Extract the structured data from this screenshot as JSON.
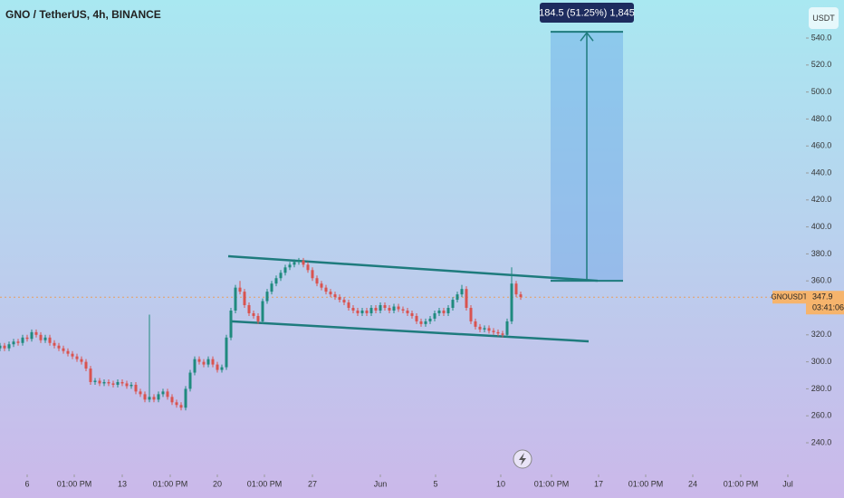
{
  "chart_data": {
    "type": "candlestick",
    "title": "GNO / TetherUS, 4h, BINANCE",
    "currency": "USDT",
    "symbol": "GNOUSDT",
    "last_price": 347.9,
    "countdown": "03:41:06",
    "up_color": "#1f8a7e",
    "down_color": "#d9534f",
    "line_color": "#1e7b7d",
    "open": [
      310,
      312,
      310,
      313,
      315,
      314,
      318,
      317,
      322,
      320,
      316,
      318,
      314,
      312,
      310,
      308,
      306,
      304,
      302,
      300,
      295,
      285,
      286,
      284,
      285,
      284,
      283,
      285,
      284,
      282,
      283,
      278,
      276,
      272,
      274,
      272,
      276,
      278,
      274,
      270,
      268,
      266,
      280,
      292,
      302,
      300,
      298,
      302,
      298,
      294,
      296,
      318,
      338,
      355,
      352,
      342,
      336,
      334,
      330,
      345,
      352,
      358,
      362,
      366,
      370,
      372,
      374,
      375,
      372,
      368,
      362,
      358,
      355,
      352,
      350,
      348,
      346,
      344,
      340,
      338,
      336,
      338,
      336,
      340,
      338,
      342,
      340,
      338,
      341,
      339,
      338,
      336,
      334,
      330,
      328,
      330,
      332,
      336,
      338,
      336,
      340,
      346,
      350,
      354,
      340,
      330,
      326,
      324,
      325,
      323,
      322,
      321,
      320,
      330,
      358,
      350
    ],
    "high": [
      314,
      314,
      315,
      317,
      317,
      320,
      320,
      324,
      324,
      322,
      320,
      320,
      316,
      314,
      312,
      310,
      308,
      306,
      304,
      302,
      297,
      288,
      288,
      287,
      287,
      286,
      287,
      287,
      286,
      285,
      285,
      280,
      278,
      335,
      276,
      278,
      280,
      280,
      276,
      272,
      270,
      282,
      294,
      304,
      304,
      302,
      304,
      304,
      300,
      298,
      320,
      340,
      357,
      360,
      354,
      344,
      338,
      336,
      347,
      354,
      360,
      364,
      368,
      372,
      374,
      376,
      377,
      377,
      374,
      370,
      364,
      360,
      357,
      354,
      352,
      350,
      348,
      346,
      342,
      340,
      340,
      340,
      342,
      342,
      344,
      344,
      342,
      343,
      343,
      341,
      340,
      338,
      336,
      332,
      332,
      334,
      338,
      340,
      340,
      342,
      348,
      352,
      357,
      356,
      342,
      332,
      328,
      327,
      327,
      325,
      324,
      323,
      332,
      370,
      360,
      352
    ],
    "low": [
      308,
      308,
      308,
      311,
      312,
      312,
      315,
      315,
      318,
      314,
      314,
      312,
      310,
      308,
      306,
      304,
      302,
      300,
      298,
      293,
      283,
      283,
      282,
      282,
      282,
      281,
      281,
      282,
      280,
      280,
      276,
      274,
      270,
      270,
      270,
      270,
      274,
      272,
      268,
      266,
      264,
      264,
      278,
      290,
      298,
      296,
      296,
      296,
      292,
      292,
      294,
      316,
      336,
      350,
      340,
      334,
      332,
      328,
      328,
      343,
      350,
      356,
      360,
      364,
      368,
      370,
      372,
      370,
      366,
      360,
      356,
      353,
      350,
      348,
      346,
      344,
      342,
      338,
      336,
      334,
      334,
      334,
      334,
      336,
      336,
      338,
      336,
      336,
      337,
      336,
      334,
      332,
      328,
      326,
      326,
      328,
      330,
      334,
      334,
      334,
      338,
      344,
      348,
      338,
      328,
      324,
      322,
      322,
      321,
      320,
      319,
      318,
      318,
      328,
      348,
      346
    ],
    "close": [
      312,
      310,
      313,
      315,
      314,
      318,
      317,
      322,
      320,
      316,
      318,
      314,
      312,
      310,
      308,
      306,
      304,
      302,
      300,
      295,
      285,
      286,
      284,
      285,
      284,
      283,
      285,
      284,
      282,
      283,
      278,
      276,
      272,
      274,
      272,
      276,
      278,
      274,
      270,
      268,
      266,
      280,
      292,
      302,
      300,
      298,
      302,
      298,
      294,
      296,
      318,
      338,
      355,
      352,
      342,
      336,
      334,
      330,
      345,
      352,
      358,
      362,
      366,
      370,
      372,
      374,
      375,
      372,
      368,
      362,
      358,
      355,
      352,
      350,
      348,
      346,
      344,
      340,
      338,
      336,
      338,
      336,
      340,
      338,
      342,
      340,
      338,
      341,
      339,
      338,
      336,
      334,
      330,
      328,
      330,
      332,
      336,
      338,
      336,
      340,
      346,
      350,
      354,
      340,
      330,
      326,
      324,
      325,
      323,
      322,
      321,
      320,
      330,
      358,
      350,
      348
    ],
    "xlim": [
      0,
      178
    ],
    "xticks": [
      6,
      {
        "value": 16.4,
        "label": "01:00 PM"
      },
      {
        "value": 27,
        "label": "13"
      },
      {
        "value": 37.6,
        "label": "01:00 PM"
      },
      {
        "value": 48,
        "label": "20"
      },
      {
        "value": 58.4,
        "label": "01:00 PM"
      },
      {
        "value": 69,
        "label": "27"
      },
      {
        "value": 84,
        "label": "Jun"
      },
      {
        "value": 96.2,
        "label": "5"
      },
      {
        "value": 110.6,
        "label": "10"
      },
      {
        "value": 121.8,
        "label": "01:00 PM"
      },
      {
        "value": 132.2,
        "label": "17"
      },
      {
        "value": 142.6,
        "label": "01:00 PM"
      },
      {
        "value": 153,
        "label": "24"
      },
      {
        "value": 163.6,
        "label": "01:00 PM"
      },
      {
        "value": 174,
        "label": "Jul"
      }
    ],
    "ylim": [
      219.2,
      568.2
    ],
    "yticks": [
      {
        "value": 240,
        "label": "240.0"
      },
      {
        "value": 260,
        "label": "260.0"
      },
      {
        "value": 280,
        "label": "280.0"
      },
      {
        "value": 300,
        "label": "300.0"
      },
      {
        "value": 320,
        "label": "320.0"
      },
      {
        "value": 340,
        "label": "340.0"
      },
      {
        "value": 360,
        "label": "360.0"
      },
      {
        "value": 380,
        "label": "380.0"
      },
      {
        "value": 400,
        "label": "400.0"
      },
      {
        "value": 420,
        "label": "420.0"
      },
      {
        "value": 440,
        "label": "440.0"
      },
      {
        "value": 460,
        "label": "460.0"
      },
      {
        "value": 480,
        "label": "480.0"
      },
      {
        "value": 500,
        "label": "500.0"
      },
      {
        "value": 520,
        "label": "520.0"
      },
      {
        "value": 540,
        "label": "540.0"
      }
    ],
    "trend_lines": [
      {
        "x": [
          50.4,
          132
        ],
        "y": [
          378.3,
          360.1
        ]
      },
      {
        "x": [
          51,
          130
        ],
        "y": [
          330,
          315.2
        ]
      }
    ],
    "measure": {
      "x": [
        121.6,
        137.6
      ],
      "y": [
        360.1,
        544.6
      ],
      "label": "184.5 (51.25%) 1,845"
    }
  }
}
